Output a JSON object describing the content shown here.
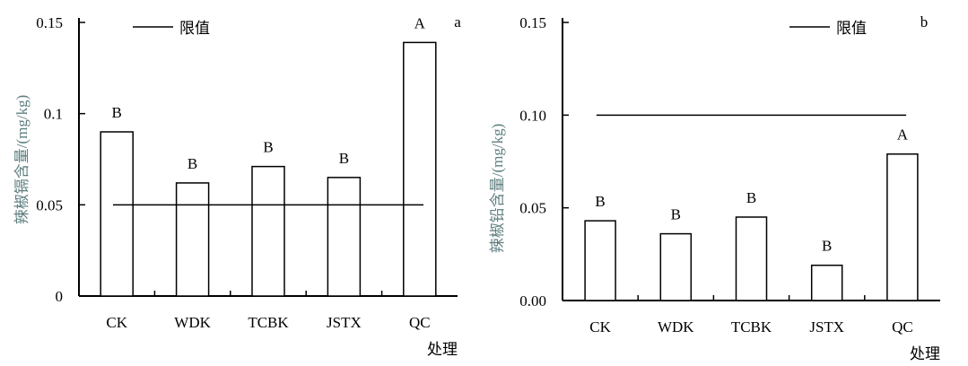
{
  "chart_data": [
    {
      "type": "bar",
      "panel": "a",
      "categories": [
        "CK",
        "WDK",
        "TCBK",
        "JSTX",
        "QC"
      ],
      "values": [
        0.09,
        0.062,
        0.071,
        0.065,
        0.139
      ],
      "letters": [
        "B",
        "B",
        "B",
        "B",
        "A"
      ],
      "limit": 0.05,
      "limit_label": "限值",
      "ylabel": "辣椒镉含量/(mg/kg)",
      "xlabel": "处理",
      "ylim": [
        0,
        0.15
      ],
      "yticks": [
        "0",
        "0.05",
        "0.1",
        "0.15"
      ],
      "ytick_values": [
        0,
        0.05,
        0.1,
        0.15
      ]
    },
    {
      "type": "bar",
      "panel": "b",
      "categories": [
        "CK",
        "WDK",
        "TCBK",
        "JSTX",
        "QC"
      ],
      "values": [
        0.043,
        0.036,
        0.045,
        0.019,
        0.079
      ],
      "letters": [
        "B",
        "B",
        "B",
        "B",
        "A"
      ],
      "limit": 0.1,
      "limit_label": "限值",
      "ylabel": "辣椒铅含量/(mg/kg)",
      "xlabel": "处理",
      "ylim": [
        0,
        0.15
      ],
      "yticks": [
        "0.00",
        "0.05",
        "0.10",
        "0.15"
      ],
      "ytick_values": [
        0,
        0.05,
        0.1,
        0.15
      ]
    }
  ]
}
